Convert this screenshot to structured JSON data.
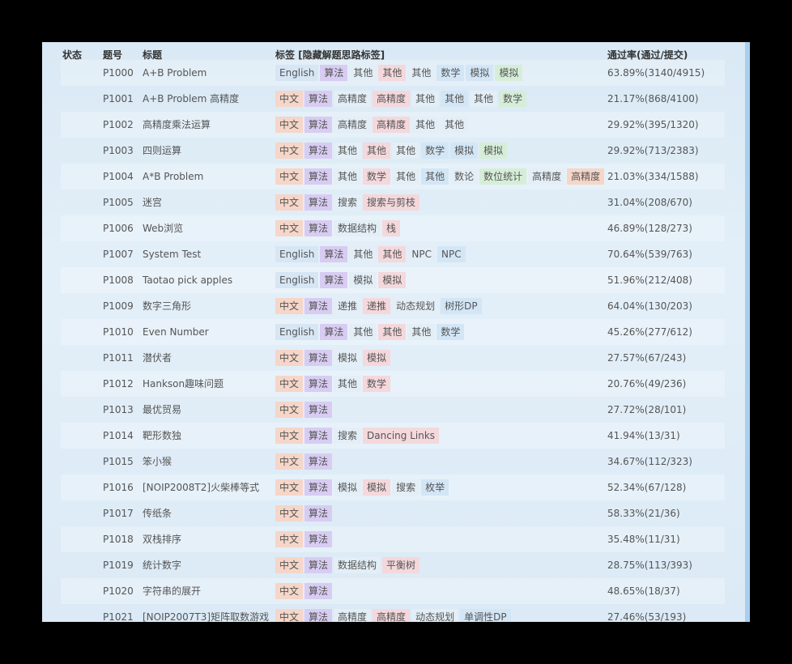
{
  "header": {
    "status": "状态",
    "id": "题号",
    "title": "标题",
    "tags": "标签 [隐藏解题思路标签]",
    "rate": "通过率(通过/提交)"
  },
  "rows": [
    {
      "id": "P1000",
      "title": "A+B Problem",
      "tags": [
        {
          "text": "English",
          "color": "#d6e6f4"
        },
        {
          "text": "算法",
          "color": "#d8ccf2"
        },
        {
          "text": "其他",
          "color": "#e3eef6"
        },
        {
          "text": "其他",
          "color": "#f4d8dc"
        },
        {
          "text": "其他",
          "color": "#e3eef6"
        },
        {
          "text": "数学",
          "color": "#d3e6f6"
        },
        {
          "text": "模拟",
          "color": "#d3e6f6"
        },
        {
          "text": "模拟",
          "color": "#d6eed8"
        }
      ],
      "rate": "63.89%(3140/4915)"
    },
    {
      "id": "P1001",
      "title": "A+B Problem 高精度",
      "tags": [
        {
          "text": "中文",
          "color": "#f5d6c8"
        },
        {
          "text": "算法",
          "color": "#d8ccf2"
        },
        {
          "text": "高精度",
          "color": "#e3eef6"
        },
        {
          "text": "高精度",
          "color": "#f4d8dc"
        },
        {
          "text": "其他",
          "color": "#e3eef6"
        },
        {
          "text": "其他",
          "color": "#d3e6f6"
        },
        {
          "text": "其他",
          "color": "#e3eef6"
        },
        {
          "text": "数学",
          "color": "#d6eed8"
        }
      ],
      "rate": "21.17%(868/4100)"
    },
    {
      "id": "P1002",
      "title": "高精度乘法运算",
      "tags": [
        {
          "text": "中文",
          "color": "#f5d6c8"
        },
        {
          "text": "算法",
          "color": "#d8ccf2"
        },
        {
          "text": "高精度",
          "color": "#e3eef6"
        },
        {
          "text": "高精度",
          "color": "#f4d8dc"
        },
        {
          "text": "其他",
          "color": "#e3eef6"
        },
        {
          "text": "其他",
          "color": "#e3eef6"
        }
      ],
      "rate": "29.92%(395/1320)"
    },
    {
      "id": "P1003",
      "title": "四则运算",
      "tags": [
        {
          "text": "中文",
          "color": "#f5d6c8"
        },
        {
          "text": "算法",
          "color": "#d8ccf2"
        },
        {
          "text": "其他",
          "color": "#e3eef6"
        },
        {
          "text": "其他",
          "color": "#f4d8dc"
        },
        {
          "text": "其他",
          "color": "#e3eef6"
        },
        {
          "text": "数学",
          "color": "#d3e6f6"
        },
        {
          "text": "模拟",
          "color": "#d3e6f6"
        },
        {
          "text": "模拟",
          "color": "#d6eed8"
        }
      ],
      "rate": "29.92%(713/2383)"
    },
    {
      "id": "P1004",
      "title": "A*B Problem",
      "tags": [
        {
          "text": "中文",
          "color": "#f5d6c8"
        },
        {
          "text": "算法",
          "color": "#d8ccf2"
        },
        {
          "text": "其他",
          "color": "#e3eef6"
        },
        {
          "text": "数学",
          "color": "#f4d8dc"
        },
        {
          "text": "其他",
          "color": "#e3eef6"
        },
        {
          "text": "其他",
          "color": "#d3e6f6"
        },
        {
          "text": "数论",
          "color": "#e3eef6"
        },
        {
          "text": "数位统计",
          "color": "#d6eed8"
        },
        {
          "text": "高精度",
          "color": "#e3eef6"
        },
        {
          "text": "高精度",
          "color": "#f5d6c8"
        }
      ],
      "rate": "21.03%(334/1588)"
    },
    {
      "id": "P1005",
      "title": "迷宫",
      "tags": [
        {
          "text": "中文",
          "color": "#f5d6c8"
        },
        {
          "text": "算法",
          "color": "#d8ccf2"
        },
        {
          "text": "搜索",
          "color": "#e3eef6"
        },
        {
          "text": "搜索与剪枝",
          "color": "#f4d8dc"
        }
      ],
      "rate": "31.04%(208/670)"
    },
    {
      "id": "P1006",
      "title": "Web浏览",
      "tags": [
        {
          "text": "中文",
          "color": "#f5d6c8"
        },
        {
          "text": "算法",
          "color": "#d8ccf2"
        },
        {
          "text": "数据结构",
          "color": "#e3eef6"
        },
        {
          "text": "栈",
          "color": "#f4d8dc"
        }
      ],
      "rate": "46.89%(128/273)"
    },
    {
      "id": "P1007",
      "title": "System Test",
      "tags": [
        {
          "text": "English",
          "color": "#d6e6f4"
        },
        {
          "text": "算法",
          "color": "#d8ccf2"
        },
        {
          "text": "其他",
          "color": "#e3eef6"
        },
        {
          "text": "其他",
          "color": "#f4d8dc"
        },
        {
          "text": "NPC",
          "color": "#e3eef6"
        },
        {
          "text": "NPC",
          "color": "#d3e6f6"
        }
      ],
      "rate": "70.64%(539/763)"
    },
    {
      "id": "P1008",
      "title": "Taotao pick apples",
      "tags": [
        {
          "text": "English",
          "color": "#d6e6f4"
        },
        {
          "text": "算法",
          "color": "#d8ccf2"
        },
        {
          "text": "模拟",
          "color": "#e3eef6"
        },
        {
          "text": "模拟",
          "color": "#f4d8dc"
        }
      ],
      "rate": "51.96%(212/408)"
    },
    {
      "id": "P1009",
      "title": "数字三角形",
      "tags": [
        {
          "text": "中文",
          "color": "#f5d6c8"
        },
        {
          "text": "算法",
          "color": "#d8ccf2"
        },
        {
          "text": "递推",
          "color": "#e3eef6"
        },
        {
          "text": "递推",
          "color": "#f4d8dc"
        },
        {
          "text": "动态规划",
          "color": "#e3eef6"
        },
        {
          "text": "树形DP",
          "color": "#d3e6f6"
        }
      ],
      "rate": "64.04%(130/203)"
    },
    {
      "id": "P1010",
      "title": "Even Number",
      "tags": [
        {
          "text": "English",
          "color": "#d6e6f4"
        },
        {
          "text": "算法",
          "color": "#d8ccf2"
        },
        {
          "text": "其他",
          "color": "#e3eef6"
        },
        {
          "text": "其他",
          "color": "#f4d8dc"
        },
        {
          "text": "其他",
          "color": "#e3eef6"
        },
        {
          "text": "数学",
          "color": "#d3e6f6"
        }
      ],
      "rate": "45.26%(277/612)"
    },
    {
      "id": "P1011",
      "title": "潜伏者",
      "tags": [
        {
          "text": "中文",
          "color": "#f5d6c8"
        },
        {
          "text": "算法",
          "color": "#d8ccf2"
        },
        {
          "text": "模拟",
          "color": "#e3eef6"
        },
        {
          "text": "模拟",
          "color": "#f4d8dc"
        }
      ],
      "rate": "27.57%(67/243)"
    },
    {
      "id": "P1012",
      "title": "Hankson趣味问题",
      "tags": [
        {
          "text": "中文",
          "color": "#f5d6c8"
        },
        {
          "text": "算法",
          "color": "#d8ccf2"
        },
        {
          "text": "其他",
          "color": "#e3eef6"
        },
        {
          "text": "数学",
          "color": "#f4d8dc"
        }
      ],
      "rate": "20.76%(49/236)"
    },
    {
      "id": "P1013",
      "title": "最优贸易",
      "tags": [
        {
          "text": "中文",
          "color": "#f5d6c8"
        },
        {
          "text": "算法",
          "color": "#d8ccf2"
        }
      ],
      "rate": "27.72%(28/101)"
    },
    {
      "id": "P1014",
      "title": "靶形数独",
      "tags": [
        {
          "text": "中文",
          "color": "#f5d6c8"
        },
        {
          "text": "算法",
          "color": "#d8ccf2"
        },
        {
          "text": "搜索",
          "color": "#e3eef6"
        },
        {
          "text": "Dancing Links",
          "color": "#f4d8dc"
        }
      ],
      "rate": "41.94%(13/31)"
    },
    {
      "id": "P1015",
      "title": "笨小猴",
      "tags": [
        {
          "text": "中文",
          "color": "#f5d6c8"
        },
        {
          "text": "算法",
          "color": "#d8ccf2"
        }
      ],
      "rate": "34.67%(112/323)"
    },
    {
      "id": "P1016",
      "title": "[NOIP2008T2]火柴棒等式",
      "tags": [
        {
          "text": "中文",
          "color": "#f5d6c8"
        },
        {
          "text": "算法",
          "color": "#d8ccf2"
        },
        {
          "text": "模拟",
          "color": "#e3eef6"
        },
        {
          "text": "模拟",
          "color": "#f4d8dc"
        },
        {
          "text": "搜索",
          "color": "#e3eef6"
        },
        {
          "text": "枚举",
          "color": "#d3e6f6"
        }
      ],
      "rate": "52.34%(67/128)"
    },
    {
      "id": "P1017",
      "title": "传纸条",
      "tags": [
        {
          "text": "中文",
          "color": "#f5d6c8"
        },
        {
          "text": "算法",
          "color": "#d8ccf2"
        }
      ],
      "rate": "58.33%(21/36)"
    },
    {
      "id": "P1018",
      "title": "双栈排序",
      "tags": [
        {
          "text": "中文",
          "color": "#f5d6c8"
        },
        {
          "text": "算法",
          "color": "#d8ccf2"
        }
      ],
      "rate": "35.48%(11/31)"
    },
    {
      "id": "P1019",
      "title": "统计数字",
      "tags": [
        {
          "text": "中文",
          "color": "#f5d6c8"
        },
        {
          "text": "算法",
          "color": "#d8ccf2"
        },
        {
          "text": "数据结构",
          "color": "#e3eef6"
        },
        {
          "text": "平衡树",
          "color": "#f4d8dc"
        }
      ],
      "rate": "28.75%(113/393)"
    },
    {
      "id": "P1020",
      "title": "字符串的展开",
      "tags": [
        {
          "text": "中文",
          "color": "#f5d6c8"
        },
        {
          "text": "算法",
          "color": "#d8ccf2"
        }
      ],
      "rate": "48.65%(18/37)"
    },
    {
      "id": "P1021",
      "title": "[NOIP2007T3]矩阵取数游戏",
      "tags": [
        {
          "text": "中文",
          "color": "#f5d6c8"
        },
        {
          "text": "算法",
          "color": "#d8ccf2"
        },
        {
          "text": "高精度",
          "color": "#e3eef6"
        },
        {
          "text": "高精度",
          "color": "#f4d8dc"
        },
        {
          "text": "动态规划",
          "color": "#e3eef6"
        },
        {
          "text": "单调性DP",
          "color": "#d3e6f6"
        }
      ],
      "rate": "27.46%(53/193)"
    }
  ]
}
